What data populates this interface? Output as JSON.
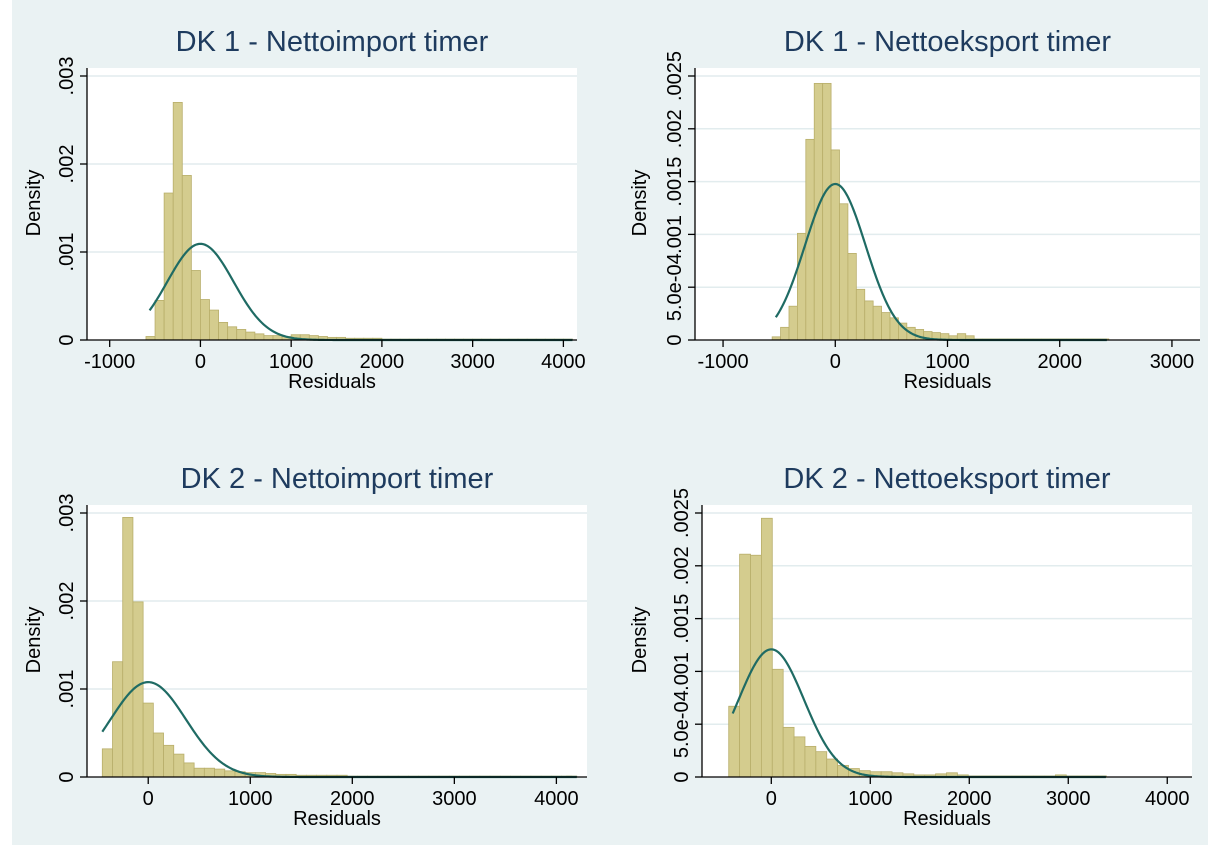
{
  "colors": {
    "background": "#eaf2f3",
    "plot_bg": "#ffffff",
    "bar_fill": "#d4cc8e",
    "bar_stroke": "#b8ae6a",
    "curve": "#1f6b64",
    "grid": "#e2ecee",
    "title": "#1e3b5e"
  },
  "chart_data": [
    {
      "type": "bar",
      "title": "DK 1 - Nettoimport timer",
      "xlabel": "Residuals",
      "ylabel": "Density",
      "xlim": [
        -1250,
        4150
      ],
      "ylim": [
        0,
        0.003
      ],
      "xticks": [
        -1000,
        0,
        1000,
        2000,
        3000,
        4000
      ],
      "xtick_labels": [
        "-1000",
        "0",
        "1000",
        "2000",
        "3000",
        "4000"
      ],
      "yticks": [
        0,
        0.001,
        0.002,
        0.003
      ],
      "ytick_labels": [
        "0",
        ".001",
        ".002",
        ".003"
      ],
      "grid": true,
      "bin_width": 100,
      "bins": [
        [
          -550,
          4e-05
        ],
        [
          -450,
          0.00045
        ],
        [
          -350,
          0.00167
        ],
        [
          -250,
          0.0027
        ],
        [
          -150,
          0.00187
        ],
        [
          -50,
          0.00079
        ],
        [
          50,
          0.00046
        ],
        [
          150,
          0.00034
        ],
        [
          250,
          0.0002
        ],
        [
          350,
          0.00015
        ],
        [
          450,
          0.00012
        ],
        [
          550,
          9e-05
        ],
        [
          650,
          7e-05
        ],
        [
          750,
          5e-05
        ],
        [
          850,
          5e-05
        ],
        [
          950,
          4e-05
        ],
        [
          1050,
          6e-05
        ],
        [
          1150,
          6e-05
        ],
        [
          1250,
          5e-05
        ],
        [
          1350,
          4e-05
        ],
        [
          1450,
          3e-05
        ],
        [
          1550,
          3e-05
        ],
        [
          1650,
          2e-05
        ],
        [
          1750,
          2e-05
        ],
        [
          1850,
          2e-05
        ],
        [
          1950,
          2e-05
        ],
        [
          2050,
          1e-05
        ],
        [
          2150,
          1e-05
        ],
        [
          2250,
          1e-05
        ],
        [
          2350,
          1e-05
        ],
        [
          2450,
          1e-05
        ],
        [
          2550,
          1e-05
        ],
        [
          2650,
          1e-05
        ],
        [
          2750,
          1e-05
        ],
        [
          2850,
          1e-05
        ],
        [
          2950,
          1e-05
        ],
        [
          3050,
          1e-05
        ],
        [
          3150,
          1e-05
        ],
        [
          3250,
          1e-05
        ],
        [
          3350,
          1e-05
        ],
        [
          3450,
          1e-05
        ],
        [
          3550,
          1e-05
        ],
        [
          3650,
          1e-05
        ],
        [
          3750,
          1e-05
        ],
        [
          3850,
          1e-05
        ],
        [
          3950,
          1e-05
        ],
        [
          4050,
          1e-05
        ]
      ],
      "normal_curve": {
        "mean": 0,
        "sd": 365,
        "x_range": [
          -560,
          4100
        ]
      }
    },
    {
      "type": "bar",
      "title": "DK 1 - Nettoeksport timer",
      "xlabel": "Residuals",
      "ylabel": "Density",
      "xlim": [
        -1250,
        3250
      ],
      "ylim": [
        0,
        0.0025
      ],
      "xticks": [
        -1000,
        0,
        1000,
        2000,
        3000
      ],
      "xtick_labels": [
        "-1000",
        "0",
        "1000",
        "2000",
        "3000"
      ],
      "yticks": [
        0,
        0.0005,
        0.001,
        0.0015,
        0.002,
        0.0025
      ],
      "ytick_labels": [
        "0",
        "5.0e-04",
        ".001",
        ".0015",
        ".002",
        ".0025"
      ],
      "grid": true,
      "bin_width": 75,
      "bins": [
        [
          -525,
          3e-05
        ],
        [
          -450,
          0.00012
        ],
        [
          -375,
          0.00032
        ],
        [
          -300,
          0.00101
        ],
        [
          -225,
          0.0019
        ],
        [
          -150,
          0.00243
        ],
        [
          -75,
          0.00243
        ],
        [
          0,
          0.0018
        ],
        [
          75,
          0.00129
        ],
        [
          150,
          0.00082
        ],
        [
          225,
          0.00048
        ],
        [
          300,
          0.00037
        ],
        [
          375,
          0.00032
        ],
        [
          450,
          0.00026
        ],
        [
          525,
          0.00021
        ],
        [
          600,
          0.00016
        ],
        [
          675,
          0.00012
        ],
        [
          750,
          0.0001
        ],
        [
          825,
          8e-05
        ],
        [
          900,
          7e-05
        ],
        [
          975,
          6e-05
        ],
        [
          1050,
          4e-05
        ],
        [
          1125,
          6e-05
        ],
        [
          1200,
          4e-05
        ],
        [
          1275,
          1e-05
        ],
        [
          1350,
          1e-05
        ],
        [
          1425,
          1e-05
        ],
        [
          1500,
          1e-05
        ],
        [
          1575,
          1e-05
        ],
        [
          1650,
          1e-05
        ],
        [
          1725,
          1e-05
        ],
        [
          1800,
          1e-05
        ],
        [
          1875,
          1e-05
        ],
        [
          1950,
          1e-05
        ],
        [
          2025,
          1e-05
        ],
        [
          2100,
          1e-05
        ],
        [
          2175,
          1e-05
        ],
        [
          2250,
          1e-05
        ],
        [
          2325,
          1e-05
        ],
        [
          2400,
          1e-05
        ]
      ],
      "normal_curve": {
        "mean": 0,
        "sd": 270,
        "x_range": [
          -530,
          2420
        ]
      }
    },
    {
      "type": "bar",
      "title": "DK 2 - Nettoimport timer",
      "xlabel": "Residuals",
      "ylabel": "Density",
      "xlim": [
        -600,
        4300
      ],
      "ylim": [
        0,
        0.003
      ],
      "xticks": [
        0,
        1000,
        2000,
        3000,
        4000
      ],
      "xtick_labels": [
        "0",
        "1000",
        "2000",
        "3000",
        "4000"
      ],
      "yticks": [
        0,
        0.001,
        0.002,
        0.003
      ],
      "ytick_labels": [
        "0",
        ".001",
        ".002",
        ".003"
      ],
      "grid": true,
      "bin_width": 100,
      "bins": [
        [
          -400,
          0.00032
        ],
        [
          -300,
          0.00131
        ],
        [
          -200,
          0.00295
        ],
        [
          -100,
          0.00199
        ],
        [
          0,
          0.00084
        ],
        [
          100,
          0.0005
        ],
        [
          200,
          0.00036
        ],
        [
          300,
          0.00026
        ],
        [
          400,
          0.00016
        ],
        [
          500,
          0.0001
        ],
        [
          600,
          0.0001
        ],
        [
          700,
          9e-05
        ],
        [
          800,
          7e-05
        ],
        [
          900,
          6e-05
        ],
        [
          1000,
          5e-05
        ],
        [
          1100,
          5e-05
        ],
        [
          1200,
          4e-05
        ],
        [
          1300,
          3e-05
        ],
        [
          1400,
          3e-05
        ],
        [
          1500,
          2e-05
        ],
        [
          1600,
          2e-05
        ],
        [
          1700,
          2e-05
        ],
        [
          1800,
          2e-05
        ],
        [
          1900,
          2e-05
        ],
        [
          2000,
          1e-05
        ],
        [
          2100,
          1e-05
        ],
        [
          2200,
          1e-05
        ],
        [
          2300,
          1e-05
        ],
        [
          2400,
          1e-05
        ],
        [
          2500,
          1e-05
        ],
        [
          2600,
          1e-05
        ],
        [
          2700,
          1e-05
        ],
        [
          2800,
          1e-05
        ],
        [
          2900,
          1e-05
        ],
        [
          3000,
          1e-05
        ],
        [
          3100,
          1e-05
        ],
        [
          3200,
          1e-05
        ],
        [
          3300,
          1e-05
        ],
        [
          3400,
          1e-05
        ],
        [
          3500,
          1e-05
        ],
        [
          3600,
          1e-05
        ],
        [
          3700,
          1e-05
        ],
        [
          3800,
          1e-05
        ],
        [
          3900,
          1e-05
        ],
        [
          4000,
          1e-05
        ],
        [
          4100,
          1e-05
        ],
        [
          4150,
          1e-05
        ]
      ],
      "normal_curve": {
        "mean": 0,
        "sd": 370,
        "x_range": [
          -450,
          4200
        ]
      }
    },
    {
      "type": "bar",
      "title": "DK 2 - Nettoeksport timer",
      "xlabel": "Residuals",
      "ylabel": "Density",
      "xlim": [
        -700,
        4250
      ],
      "ylim": [
        0,
        0.0025
      ],
      "xticks": [
        0,
        1000,
        2000,
        3000,
        4000
      ],
      "xtick_labels": [
        "0",
        "1000",
        "2000",
        "3000",
        "4000"
      ],
      "yticks": [
        0,
        0.0005,
        0.001,
        0.0015,
        0.002,
        0.0025
      ],
      "ytick_labels": [
        "0",
        "5.0e-04",
        ".001",
        ".0015",
        ".002",
        ".0025"
      ],
      "grid": true,
      "bin_width": 110,
      "bins": [
        [
          -375,
          0.00067
        ],
        [
          -265,
          0.00211
        ],
        [
          -155,
          0.0021
        ],
        [
          -45,
          0.00245
        ],
        [
          65,
          0.00102
        ],
        [
          175,
          0.00047
        ],
        [
          285,
          0.00038
        ],
        [
          395,
          0.00029
        ],
        [
          505,
          0.00024
        ],
        [
          615,
          0.00017
        ],
        [
          725,
          0.00011
        ],
        [
          835,
          8e-05
        ],
        [
          945,
          6e-05
        ],
        [
          1055,
          5e-05
        ],
        [
          1165,
          5e-05
        ],
        [
          1275,
          4e-05
        ],
        [
          1385,
          3e-05
        ],
        [
          1495,
          2e-05
        ],
        [
          1605,
          2e-05
        ],
        [
          1715,
          3e-05
        ],
        [
          1825,
          4e-05
        ],
        [
          1935,
          2e-05
        ],
        [
          2045,
          1e-05
        ],
        [
          2155,
          1e-05
        ],
        [
          2265,
          1e-05
        ],
        [
          2375,
          1e-05
        ],
        [
          2485,
          1e-05
        ],
        [
          2595,
          1e-05
        ],
        [
          2705,
          1e-05
        ],
        [
          2815,
          1e-05
        ],
        [
          2925,
          2e-05
        ],
        [
          3035,
          1e-05
        ],
        [
          3145,
          1e-05
        ],
        [
          3255,
          1e-05
        ],
        [
          3330,
          1e-05
        ]
      ],
      "normal_curve": {
        "mean": 0,
        "sd": 330,
        "x_range": [
          -390,
          3380
        ]
      }
    }
  ]
}
